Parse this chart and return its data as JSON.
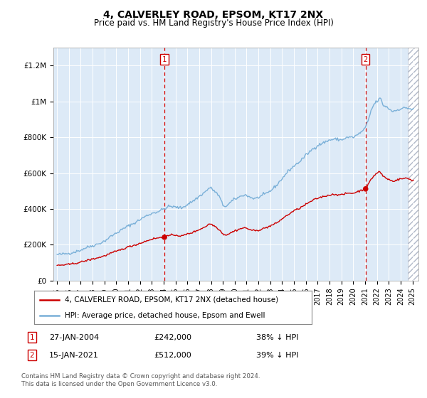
{
  "title": "4, CALVERLEY ROAD, EPSOM, KT17 2NX",
  "subtitle": "Price paid vs. HM Land Registry's House Price Index (HPI)",
  "legend_line1": "4, CALVERLEY ROAD, EPSOM, KT17 2NX (detached house)",
  "legend_line2": "HPI: Average price, detached house, Epsom and Ewell",
  "annotation1_date": "27-JAN-2004",
  "annotation1_price": "£242,000",
  "annotation1_hpi": "38% ↓ HPI",
  "annotation2_date": "15-JAN-2021",
  "annotation2_price": "£512,000",
  "annotation2_hpi": "39% ↓ HPI",
  "footer": "Contains HM Land Registry data © Crown copyright and database right 2024.\nThis data is licensed under the Open Government Licence v3.0.",
  "hpi_color": "#7ab0d8",
  "price_color": "#cc0000",
  "bg_color": "#ddeaf7",
  "ylim_min": 0,
  "ylim_max": 1300000,
  "purchase1_year": 2004.07,
  "purchase1_price": 242000,
  "purchase2_year": 2021.04,
  "purchase2_price": 512000,
  "xmin": 1994.7,
  "xmax": 2025.5
}
